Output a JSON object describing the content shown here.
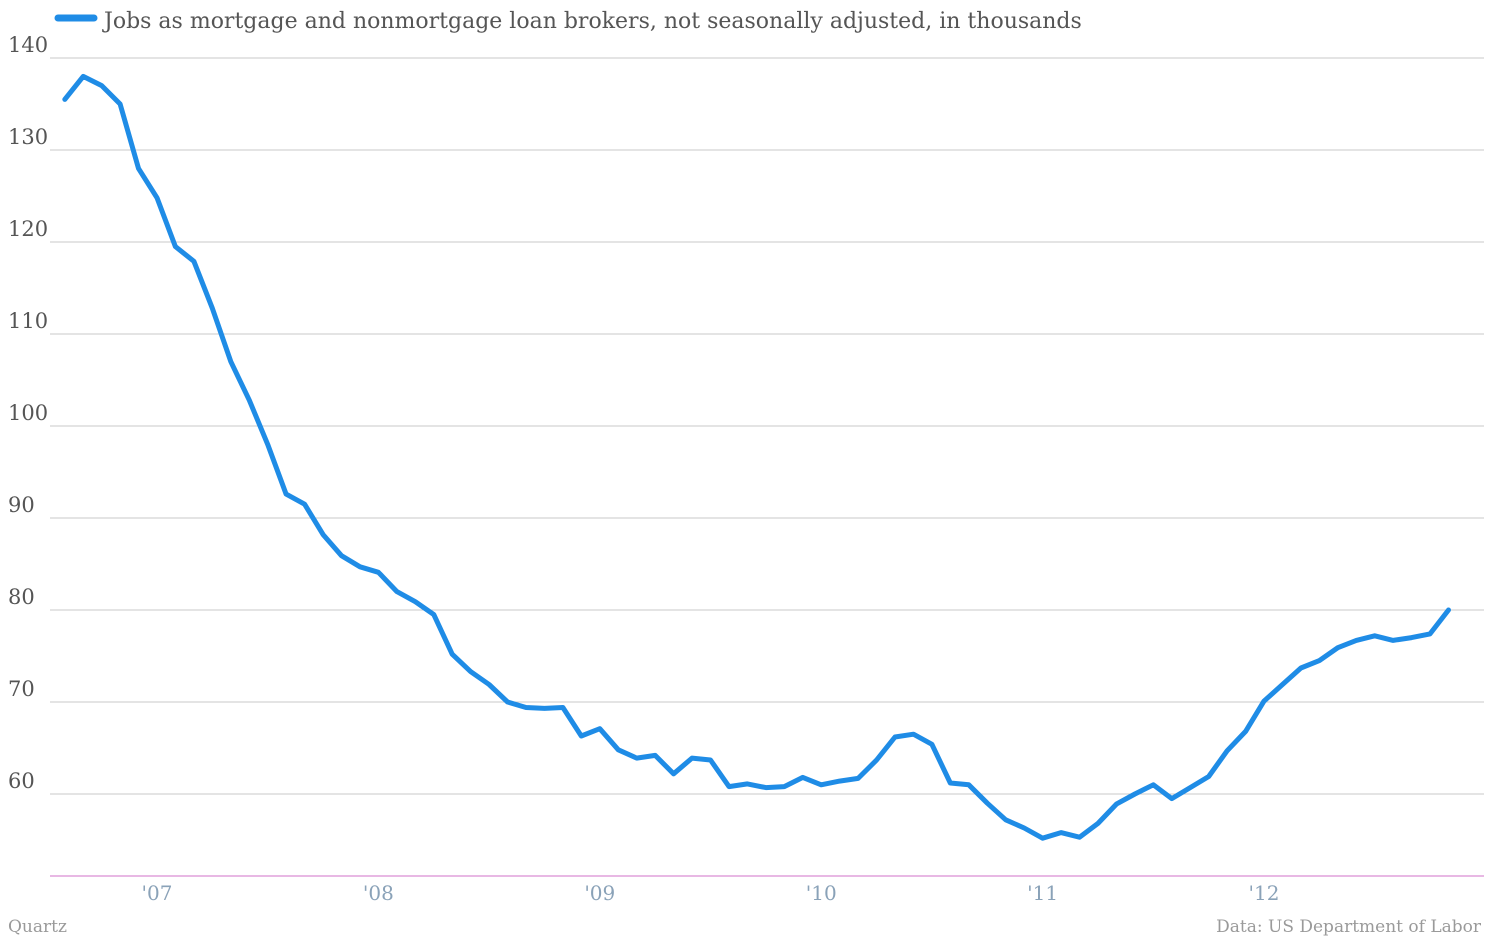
{
  "chart_data": {
    "type": "line",
    "title": "",
    "xlabel": "",
    "ylabel": "",
    "legend": "top-left",
    "grid": true,
    "ylim": [
      51,
      140
    ],
    "yticks": [
      60,
      70,
      80,
      90,
      100,
      110,
      120,
      130,
      140
    ],
    "xticks": [
      {
        "year": 2007,
        "label": "'07"
      },
      {
        "year": 2008,
        "label": "'08"
      },
      {
        "year": 2009,
        "label": "'09"
      },
      {
        "year": 2010,
        "label": "'10"
      },
      {
        "year": 2011,
        "label": "'11"
      },
      {
        "year": 2012,
        "label": "'12"
      }
    ],
    "start": "2006-08",
    "frequency": "monthly",
    "series": [
      {
        "name": "Jobs as mortgage and nonmortgage loan brokers, not seasonally adjusted, in thousands",
        "color": "#1f8ce6",
        "values": [
          135.5,
          138,
          137,
          135,
          128,
          124.8,
          119.5,
          117.9,
          112.8,
          107,
          102.8,
          98,
          92.6,
          91.5,
          88.2,
          85.9,
          84.7,
          84.1,
          82,
          80.9,
          79.5,
          75.2,
          73.3,
          71.9,
          70,
          69.4,
          69.3,
          69.4,
          66.3,
          67.1,
          64.8,
          63.9,
          64.2,
          62.2,
          63.9,
          63.7,
          60.8,
          61.1,
          60.7,
          60.8,
          61.8,
          61,
          61.4,
          61.7,
          63.7,
          66.2,
          66.5,
          65.4,
          61.2,
          61,
          59,
          57.2,
          56.3,
          55.2,
          55.8,
          55.3,
          56.8,
          58.9,
          60,
          61,
          59.5,
          60.7,
          61.9,
          64.7,
          66.8,
          70.1,
          71.9,
          73.7,
          74.5,
          75.9,
          76.7,
          77.2,
          76.7,
          77,
          77.4,
          80
        ]
      }
    ]
  },
  "footer": {
    "source_left": "Quartz",
    "source_right": "Data: US Department of Labor"
  }
}
